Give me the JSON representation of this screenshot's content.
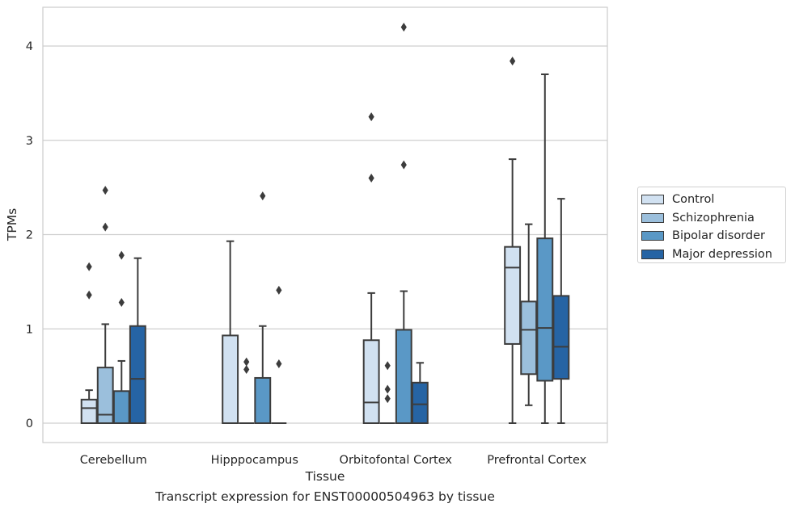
{
  "chart_data": {
    "type": "box",
    "caption": "Transcript expression for ENST00000504963 by tissue",
    "xlabel": "Tissue",
    "ylabel": "TPMs",
    "ylim": [
      -0.2,
      4.4
    ],
    "yticks": [
      0,
      1,
      2,
      3,
      4
    ],
    "grid": true,
    "legend_position": "right",
    "categories": [
      "Cerebellum",
      "Hipppocampus",
      "Orbitofontal Cortex",
      "Prefrontal Cortex"
    ],
    "series": [
      {
        "name": "Control",
        "color": "#d1e1f1",
        "boxes": [
          {
            "whislo": 0,
            "q1": 0,
            "med": 0.16,
            "q3": 0.25,
            "whishi": 0.35,
            "fliers": [
              1.36,
              1.66
            ]
          },
          {
            "whislo": 0,
            "q1": 0,
            "med": 0,
            "q3": 0.93,
            "whishi": 1.93,
            "fliers": []
          },
          {
            "whislo": 0,
            "q1": 0,
            "med": 0.22,
            "q3": 0.88,
            "whishi": 1.38,
            "fliers": [
              2.6,
              3.25
            ]
          },
          {
            "whislo": 0,
            "q1": 0.84,
            "med": 1.65,
            "q3": 1.87,
            "whishi": 2.8,
            "fliers": [
              3.84
            ]
          }
        ]
      },
      {
        "name": "Schizophrenia",
        "color": "#9bbfdc",
        "boxes": [
          {
            "whislo": 0,
            "q1": 0,
            "med": 0.09,
            "q3": 0.59,
            "whishi": 1.05,
            "fliers": [
              2.08,
              2.47
            ]
          },
          {
            "whislo": 0,
            "q1": 0,
            "med": 0,
            "q3": 0,
            "whishi": 0,
            "fliers": [
              0.57,
              0.65
            ]
          },
          {
            "whislo": 0,
            "q1": 0,
            "med": 0,
            "q3": 0,
            "whishi": 0,
            "fliers": [
              0.26,
              0.36,
              0.61
            ]
          },
          {
            "whislo": 0.19,
            "q1": 0.52,
            "med": 0.99,
            "q3": 1.29,
            "whishi": 2.11,
            "fliers": []
          }
        ]
      },
      {
        "name": "Bipolar disorder",
        "color": "#5a98c6",
        "boxes": [
          {
            "whislo": 0,
            "q1": 0,
            "med": 0,
            "q3": 0.34,
            "whishi": 0.66,
            "fliers": [
              1.28,
              1.78
            ]
          },
          {
            "whislo": 0,
            "q1": 0,
            "med": 0,
            "q3": 0.48,
            "whishi": 1.03,
            "fliers": [
              2.41
            ]
          },
          {
            "whislo": 0,
            "q1": 0,
            "med": 0,
            "q3": 0.99,
            "whishi": 1.4,
            "fliers": [
              2.74,
              4.2
            ]
          },
          {
            "whislo": 0,
            "q1": 0.45,
            "med": 1.01,
            "q3": 1.96,
            "whishi": 3.7,
            "fliers": []
          }
        ]
      },
      {
        "name": "Major depression",
        "color": "#2664a4",
        "boxes": [
          {
            "whislo": 0,
            "q1": 0,
            "med": 0.47,
            "q3": 1.03,
            "whishi": 1.75,
            "fliers": []
          },
          {
            "whislo": 0,
            "q1": 0,
            "med": 0,
            "q3": 0,
            "whishi": 0,
            "fliers": [
              0.63,
              1.41
            ]
          },
          {
            "whislo": 0,
            "q1": 0,
            "med": 0.2,
            "q3": 0.43,
            "whishi": 0.64,
            "fliers": []
          },
          {
            "whislo": 0,
            "q1": 0.47,
            "med": 0.81,
            "q3": 1.35,
            "whishi": 2.38,
            "fliers": []
          }
        ]
      }
    ]
  }
}
